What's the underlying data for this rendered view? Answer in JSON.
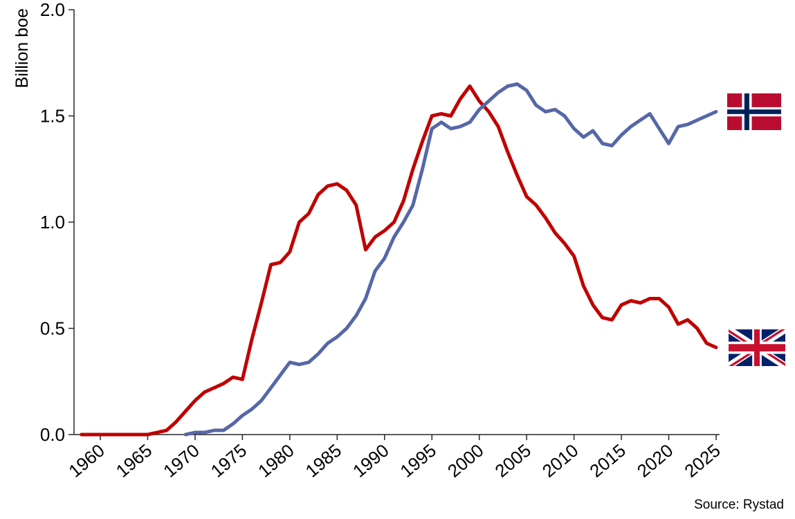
{
  "chart_data": {
    "type": "line",
    "title": "",
    "ylabel": "Billion boe",
    "xlabel": "",
    "source": "Source: Rystad",
    "grid": false,
    "legend_position": "right-of-line-ends-as-flag-icons",
    "ylim": [
      0,
      2.0
    ],
    "yticks": [
      0.0,
      0.5,
      1.0,
      1.5,
      2.0
    ],
    "ytick_labels": [
      "0.0",
      "0.5",
      "1.0",
      "1.5",
      "2.0"
    ],
    "xticks": [
      1960,
      1965,
      1970,
      1975,
      1980,
      1985,
      1990,
      1995,
      2000,
      2005,
      2010,
      2015,
      2020,
      2025
    ],
    "years": [
      1958,
      1959,
      1960,
      1961,
      1962,
      1963,
      1964,
      1965,
      1966,
      1967,
      1968,
      1969,
      1970,
      1971,
      1972,
      1973,
      1974,
      1975,
      1976,
      1977,
      1978,
      1979,
      1980,
      1981,
      1982,
      1983,
      1984,
      1985,
      1986,
      1987,
      1988,
      1989,
      1990,
      1991,
      1992,
      1993,
      1994,
      1995,
      1996,
      1997,
      1998,
      1999,
      2000,
      2001,
      2002,
      2003,
      2004,
      2005,
      2006,
      2007,
      2008,
      2009,
      2010,
      2011,
      2012,
      2013,
      2014,
      2015,
      2016,
      2017,
      2018,
      2019,
      2020,
      2021,
      2022,
      2023,
      2024,
      2025
    ],
    "series": [
      {
        "id": "uk",
        "name": "United Kingdom",
        "flag_icon": "uk-flag-icon",
        "color": "#C00000",
        "values": [
          0.0,
          0.0,
          0.0,
          0.0,
          0.0,
          0.0,
          0.0,
          0.0,
          0.01,
          0.02,
          0.06,
          0.11,
          0.16,
          0.2,
          0.22,
          0.24,
          0.27,
          0.26,
          0.45,
          0.62,
          0.8,
          0.81,
          0.86,
          1.0,
          1.04,
          1.13,
          1.17,
          1.18,
          1.15,
          1.08,
          0.87,
          0.93,
          0.96,
          1.0,
          1.1,
          1.25,
          1.38,
          1.5,
          1.51,
          1.5,
          1.58,
          1.64,
          1.57,
          1.52,
          1.45,
          1.33,
          1.22,
          1.12,
          1.08,
          1.02,
          0.95,
          0.9,
          0.84,
          0.7,
          0.61,
          0.55,
          0.54,
          0.61,
          0.63,
          0.62,
          0.64,
          0.64,
          0.6,
          0.52,
          0.54,
          0.5,
          0.43,
          0.41
        ]
      },
      {
        "id": "norway",
        "name": "Norway",
        "flag_icon": "norway-flag-icon",
        "color": "#5667A8",
        "values": [
          null,
          null,
          null,
          null,
          null,
          null,
          null,
          null,
          null,
          null,
          null,
          0.0,
          0.01,
          0.01,
          0.02,
          0.02,
          0.05,
          0.09,
          0.12,
          0.16,
          0.22,
          0.28,
          0.34,
          0.33,
          0.34,
          0.38,
          0.43,
          0.46,
          0.5,
          0.56,
          0.64,
          0.77,
          0.83,
          0.93,
          1.0,
          1.08,
          1.25,
          1.44,
          1.47,
          1.44,
          1.45,
          1.47,
          1.53,
          1.57,
          1.61,
          1.64,
          1.65,
          1.62,
          1.55,
          1.52,
          1.53,
          1.5,
          1.44,
          1.4,
          1.43,
          1.37,
          1.36,
          1.41,
          1.45,
          1.48,
          1.51,
          1.44,
          1.37,
          1.45,
          1.46,
          1.48,
          1.5,
          1.52
        ]
      }
    ],
    "flag_colors": {
      "norway_red": "#BA0C2F",
      "norway_blue": "#00205B",
      "uk_blue": "#012169",
      "uk_red": "#C8102E"
    }
  }
}
